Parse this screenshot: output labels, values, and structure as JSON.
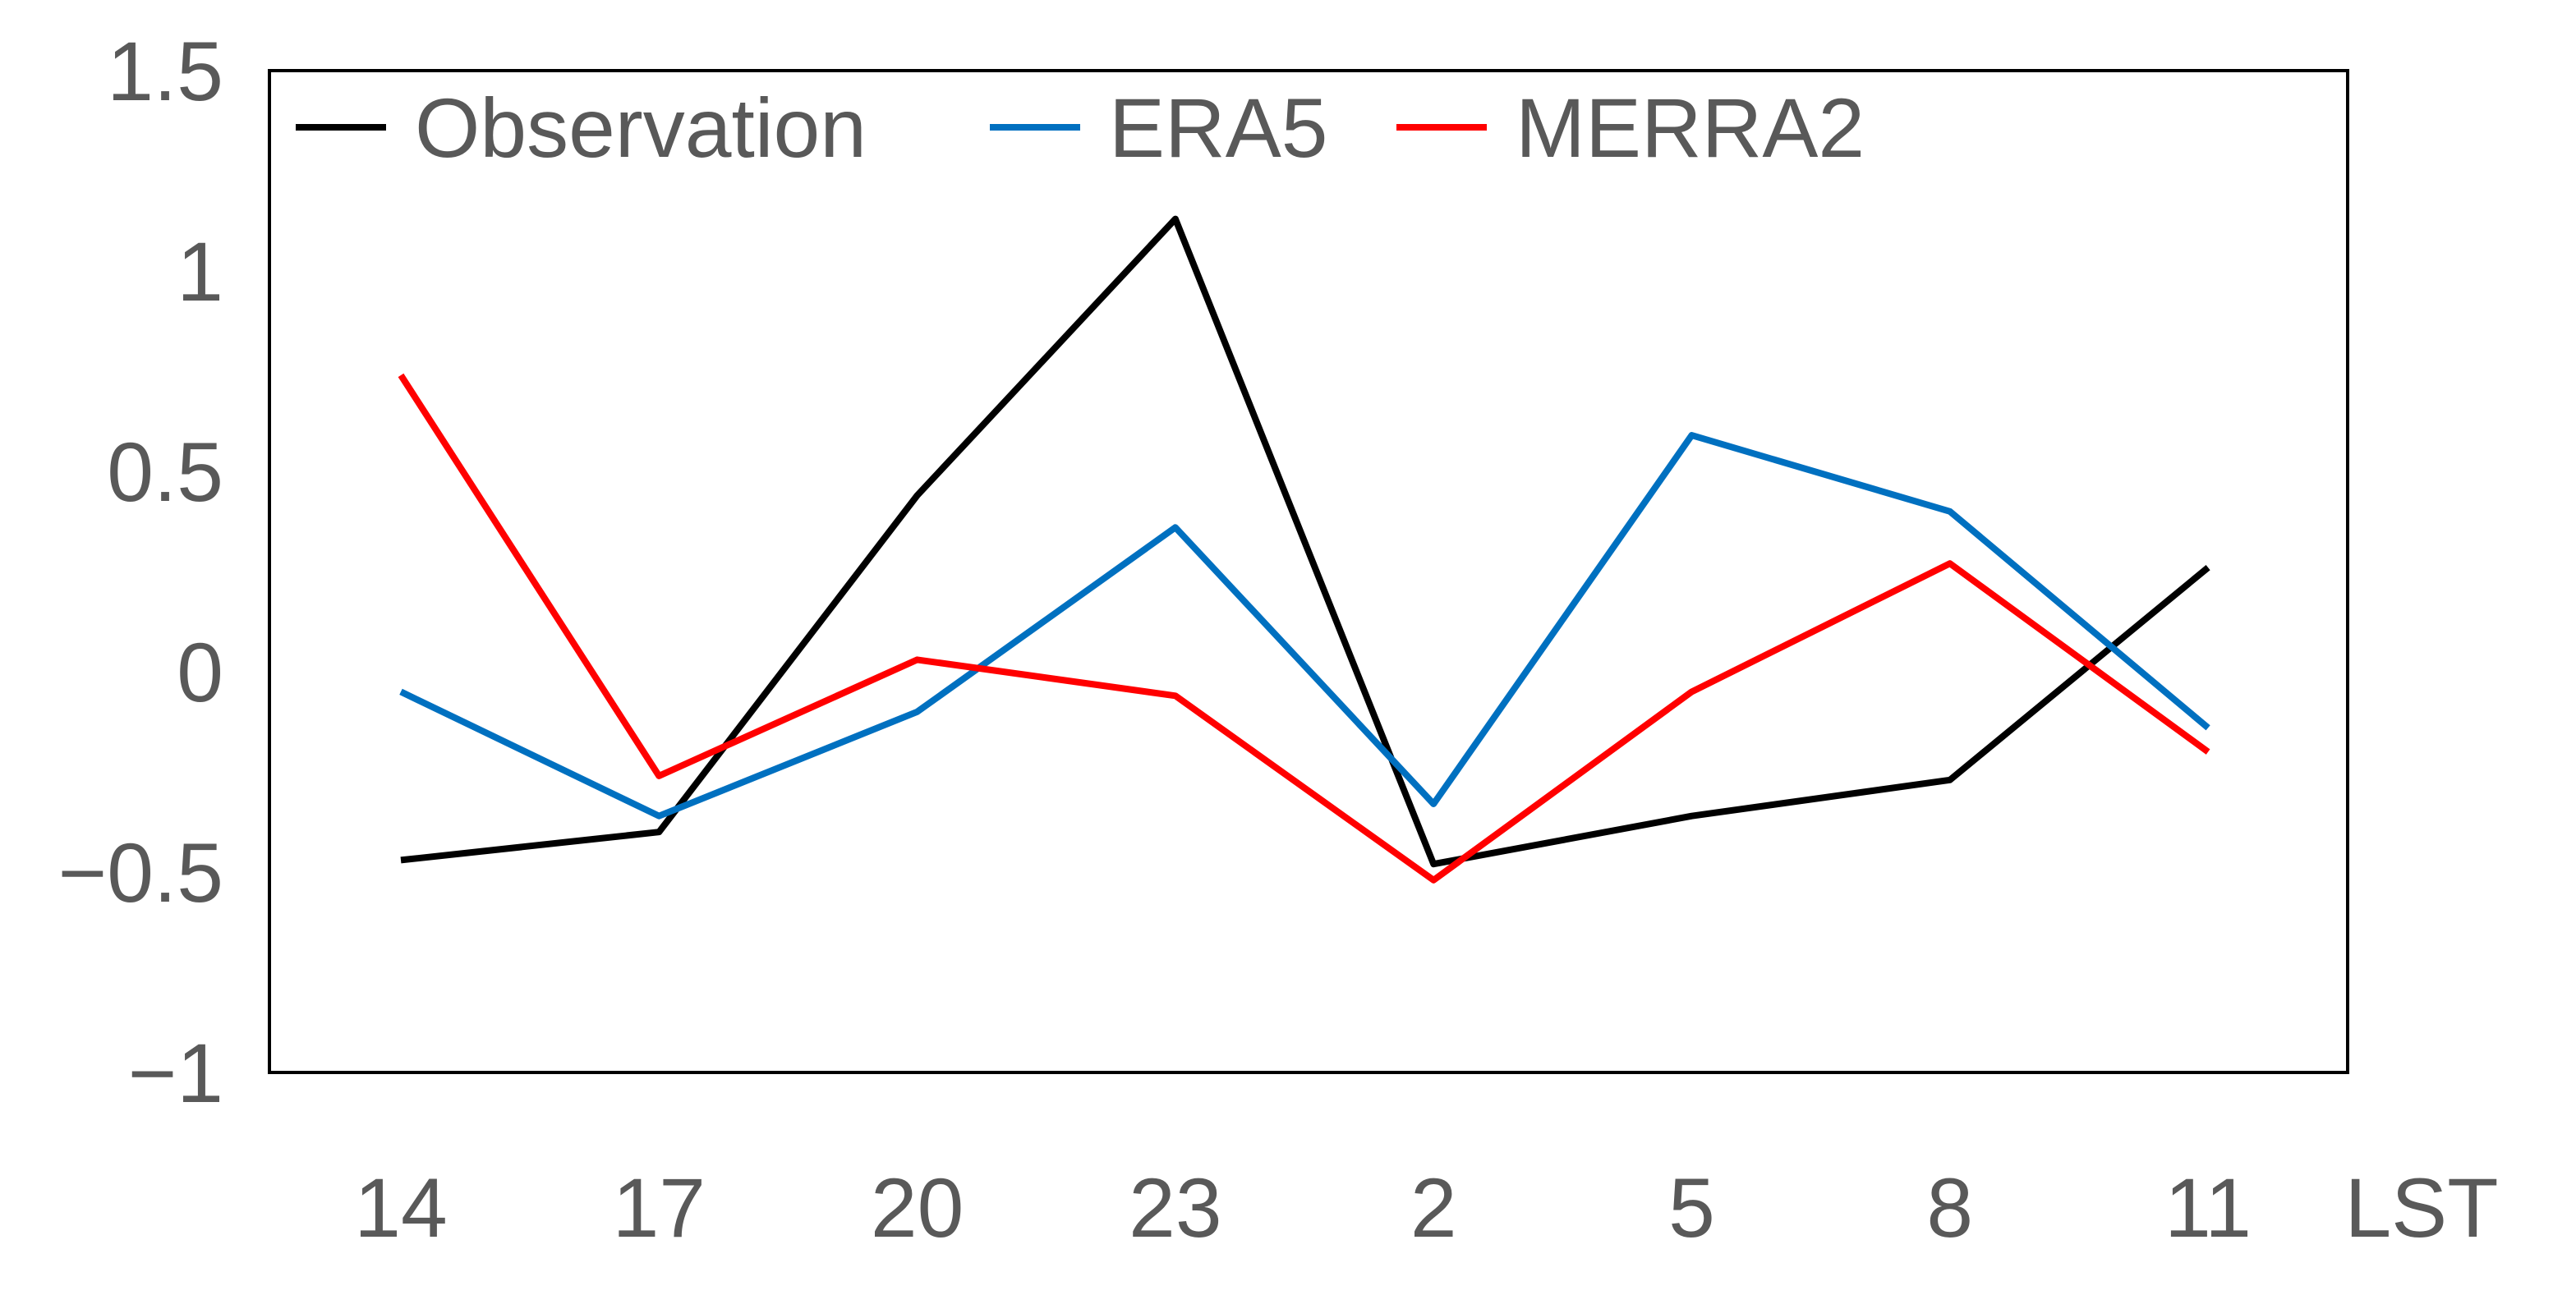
{
  "chart_data": {
    "type": "line",
    "title": "",
    "xlabel": "LST",
    "ylabel": "",
    "categories": [
      "14",
      "17",
      "20",
      "23",
      "2",
      "5",
      "8",
      "11"
    ],
    "ylim": [
      -1,
      1.5
    ],
    "yticks": [
      {
        "value": -1,
        "label": "−1"
      },
      {
        "value": -0.5,
        "label": "−0.5"
      },
      {
        "value": 0,
        "label": "0"
      },
      {
        "value": 0.5,
        "label": "0.5"
      },
      {
        "value": 1,
        "label": "1"
      },
      {
        "value": 1.5,
        "label": "1.5"
      }
    ],
    "grid": false,
    "legend_position": "top-left",
    "series": [
      {
        "name": "Observation",
        "color": "#000000",
        "values": [
          -0.47,
          -0.4,
          0.44,
          1.13,
          -0.48,
          -0.36,
          -0.27,
          0.26
        ]
      },
      {
        "name": "ERA5",
        "color": "#0070C0",
        "values": [
          -0.05,
          -0.36,
          -0.1,
          0.36,
          -0.33,
          0.59,
          0.4,
          -0.14
        ]
      },
      {
        "name": "MERRA2",
        "color": "#FF0000",
        "values": [
          0.74,
          -0.26,
          0.03,
          -0.06,
          -0.52,
          -0.05,
          0.27,
          -0.2
        ]
      }
    ]
  }
}
